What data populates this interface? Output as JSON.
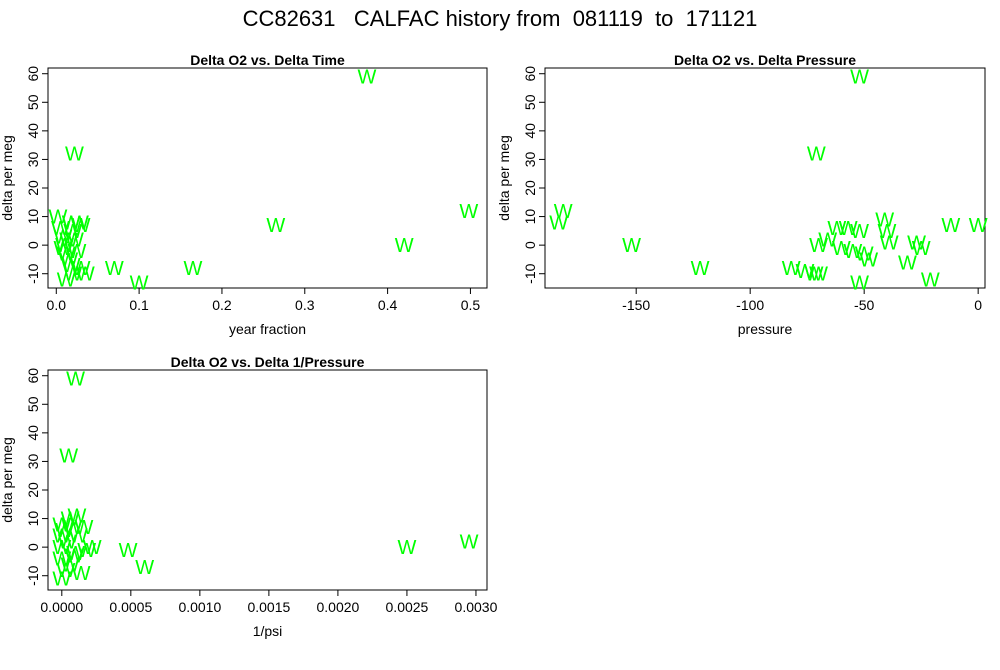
{
  "title": "CC82631   CALFAC history from  081119  to  171121",
  "colors": {
    "marker": "#00ff00",
    "axis": "#000000"
  },
  "chart_data": [
    {
      "type": "scatter",
      "title": "Delta O2 vs. Delta Time",
      "xlabel": "year fraction",
      "ylabel": "delta per meg",
      "marker": "W",
      "xlim": [
        -0.01,
        0.52
      ],
      "ylim": [
        -15,
        62
      ],
      "xticks": [
        0.0,
        0.1,
        0.2,
        0.3,
        0.4,
        0.5
      ],
      "xtick_labels": [
        "0.0",
        "0.1",
        "0.2",
        "0.3",
        "0.4",
        "0.5"
      ],
      "yticks": [
        -10,
        0,
        10,
        20,
        30,
        40,
        50,
        60
      ],
      "ytick_labels": [
        "-10",
        "0",
        "10",
        "20",
        "30",
        "40",
        "50",
        "60"
      ],
      "points": [
        {
          "x": 0.375,
          "y": 59
        },
        {
          "x": 0.022,
          "y": 32
        },
        {
          "x": 0.498,
          "y": 12
        },
        {
          "x": 0.265,
          "y": 7
        },
        {
          "x": 0.42,
          "y": 0
        },
        {
          "x": 0.165,
          "y": -8
        },
        {
          "x": 0.07,
          "y": -8
        },
        {
          "x": 0.1,
          "y": -13
        },
        {
          "x": 0.03,
          "y": -8
        },
        {
          "x": 0.035,
          "y": -10
        },
        {
          "x": 0.012,
          "y": -12
        },
        {
          "x": 0.02,
          "y": -10
        },
        {
          "x": 0.002,
          "y": 10
        },
        {
          "x": 0.005,
          "y": 6
        },
        {
          "x": 0.008,
          "y": 3
        },
        {
          "x": 0.01,
          "y": 0
        },
        {
          "x": 0.012,
          "y": -3
        },
        {
          "x": 0.015,
          "y": -5
        },
        {
          "x": 0.018,
          "y": 8
        },
        {
          "x": 0.02,
          "y": 5
        },
        {
          "x": 0.022,
          "y": 2
        },
        {
          "x": 0.025,
          "y": -2
        },
        {
          "x": 0.028,
          "y": 8
        },
        {
          "x": 0.03,
          "y": 7
        },
        {
          "x": 0.015,
          "y": 2
        },
        {
          "x": 0.018,
          "y": -7
        },
        {
          "x": 0.008,
          "y": -1
        }
      ]
    },
    {
      "type": "scatter",
      "title": "Delta O2 vs. Delta Pressure",
      "xlabel": "pressure",
      "ylabel": "delta per meg",
      "marker": "W",
      "xlim": [
        -190,
        3
      ],
      "ylim": [
        -15,
        62
      ],
      "xticks": [
        -150,
        -100,
        -50,
        0
      ],
      "xtick_labels": [
        "-150",
        "-100",
        "-50",
        "0"
      ],
      "yticks": [
        -10,
        0,
        10,
        20,
        30,
        40,
        50,
        60
      ],
      "ytick_labels": [
        "-10",
        "0",
        "10",
        "20",
        "30",
        "40",
        "50",
        "60"
      ],
      "points": [
        {
          "x": -52,
          "y": 59
        },
        {
          "x": -71,
          "y": 32
        },
        {
          "x": -184,
          "y": 8
        },
        {
          "x": -182,
          "y": 12
        },
        {
          "x": -152,
          "y": 0
        },
        {
          "x": -122,
          "y": -8
        },
        {
          "x": -82,
          "y": -8
        },
        {
          "x": -76,
          "y": -9
        },
        {
          "x": -72,
          "y": -10
        },
        {
          "x": -70,
          "y": -10
        },
        {
          "x": -70,
          "y": 0
        },
        {
          "x": -66,
          "y": 2
        },
        {
          "x": -62,
          "y": 6
        },
        {
          "x": -60,
          "y": -1
        },
        {
          "x": -57,
          "y": 6
        },
        {
          "x": -55,
          "y": -2
        },
        {
          "x": -52,
          "y": 5
        },
        {
          "x": -52,
          "y": -13
        },
        {
          "x": -50,
          "y": -3
        },
        {
          "x": -48,
          "y": -5
        },
        {
          "x": -41,
          "y": 9
        },
        {
          "x": -40,
          "y": 5
        },
        {
          "x": -39,
          "y": 1
        },
        {
          "x": -31,
          "y": -6
        },
        {
          "x": -27,
          "y": 1
        },
        {
          "x": -25,
          "y": -1
        },
        {
          "x": -21,
          "y": -12
        },
        {
          "x": -12,
          "y": 7
        },
        {
          "x": 0,
          "y": 7
        }
      ]
    },
    {
      "type": "scatter",
      "title": "Delta O2 vs. Delta 1/Pressure",
      "xlabel": "1/psi",
      "ylabel": "delta per meg",
      "marker": "W",
      "xlim": [
        -0.0001,
        0.00308
      ],
      "ylim": [
        -15,
        62
      ],
      "xticks": [
        0.0,
        0.0005,
        0.001,
        0.0015,
        0.002,
        0.0025,
        0.003
      ],
      "xtick_labels": [
        "0.0000",
        "0.0005",
        "0.0010",
        "0.0015",
        "0.0020",
        "0.0025",
        "0.0030"
      ],
      "yticks": [
        -10,
        0,
        10,
        20,
        30,
        40,
        50,
        60
      ],
      "ytick_labels": [
        "-10",
        "0",
        "10",
        "20",
        "30",
        "40",
        "50",
        "60"
      ],
      "points": [
        {
          "x": 0.0001,
          "y": 59
        },
        {
          "x": 5e-05,
          "y": 32
        },
        {
          "x": 0.00295,
          "y": 2
        },
        {
          "x": 0.0025,
          "y": 0
        },
        {
          "x": 0.00048,
          "y": -1
        },
        {
          "x": 0.0006,
          "y": -7
        },
        {
          "x": 0.0,
          "y": 8
        },
        {
          "x": 0.0,
          "y": 4
        },
        {
          "x": 0.0,
          "y": 0
        },
        {
          "x": 0.0,
          "y": -4
        },
        {
          "x": 0.0,
          "y": -11
        },
        {
          "x": 2e-05,
          "y": 6
        },
        {
          "x": 3e-05,
          "y": -8
        },
        {
          "x": 4e-05,
          "y": 2
        },
        {
          "x": 6e-05,
          "y": 10
        },
        {
          "x": 8e-05,
          "y": 7
        },
        {
          "x": 9e-05,
          "y": -3
        },
        {
          "x": 0.00011,
          "y": 11
        },
        {
          "x": 0.00012,
          "y": 4
        },
        {
          "x": 0.00014,
          "y": -9
        },
        {
          "x": 0.00016,
          "y": 7
        },
        {
          "x": 0.00018,
          "y": -1
        },
        {
          "x": 0.00022,
          "y": 0
        },
        {
          "x": 6e-05,
          "y": -6
        },
        {
          "x": 0.0001,
          "y": -2
        }
      ]
    }
  ]
}
